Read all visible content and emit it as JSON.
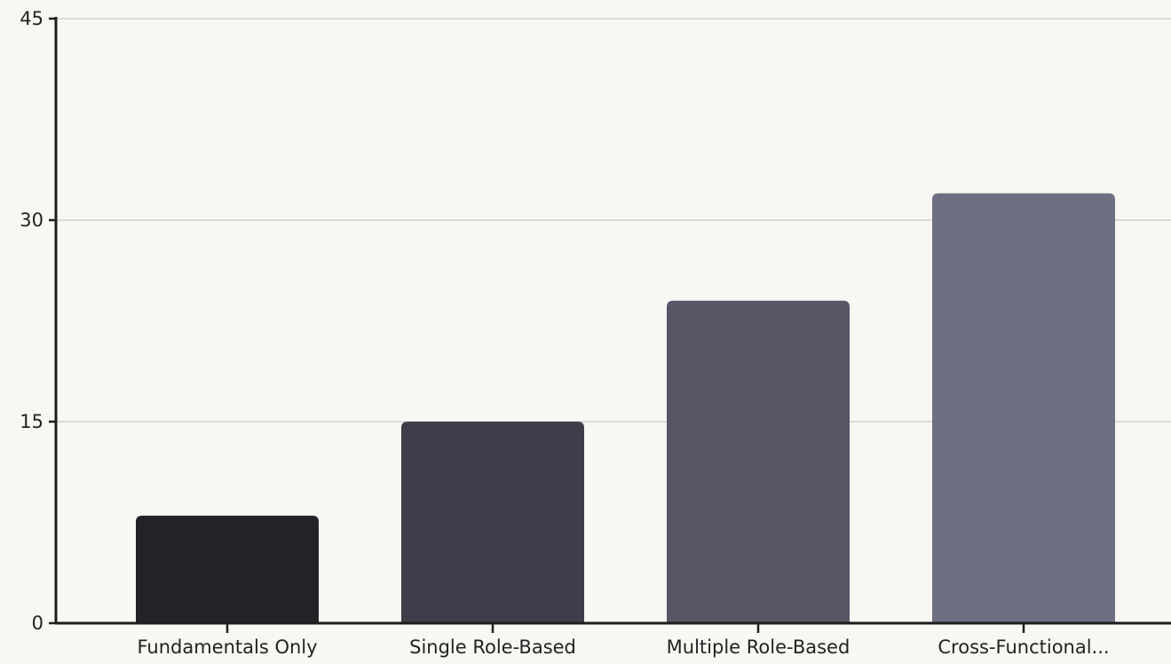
{
  "chart_data": {
    "type": "bar",
    "title": "",
    "xlabel": "",
    "ylabel": "",
    "categories": [
      "Fundamentals Only",
      "Single Role-Based",
      "Multiple Role-Based",
      "Cross-Functional..."
    ],
    "values": [
      8,
      15,
      24,
      32
    ],
    "ylim": [
      0,
      45
    ],
    "yticks": [
      0,
      15,
      30,
      45
    ],
    "grid": true,
    "legend": "none",
    "colors": [
      "#232227",
      "#3e3d49",
      "#575665",
      "#6f6f82"
    ],
    "background": "#f8f7f3",
    "grid_color": "#d3d2cf",
    "axis_color": "#1e1e1e"
  }
}
